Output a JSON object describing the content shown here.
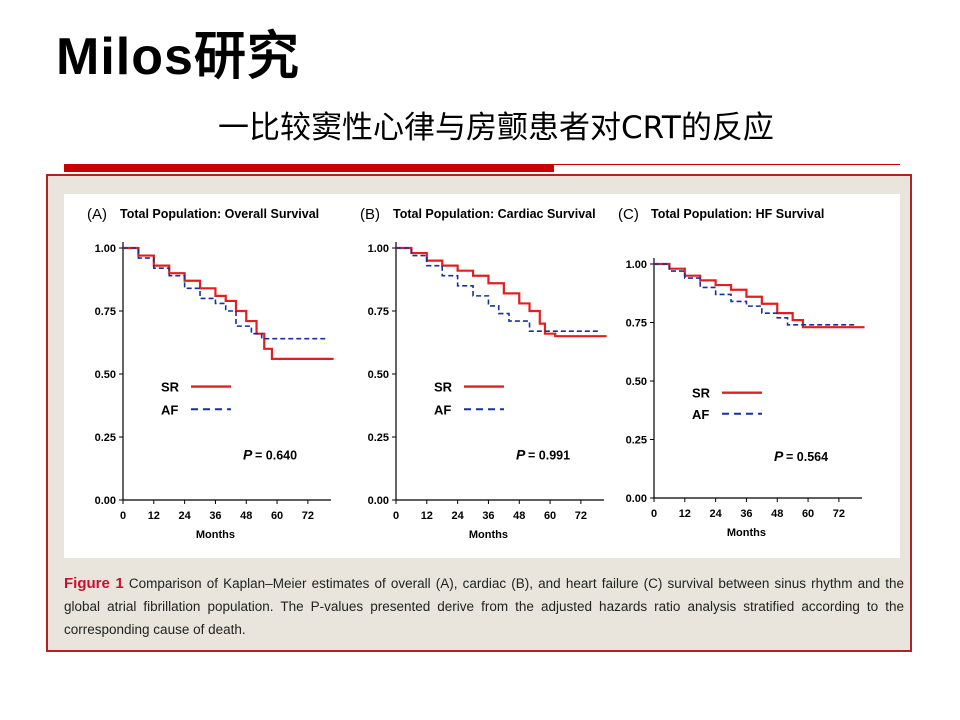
{
  "slide": {
    "title": "Milos研究",
    "subtitle": "一比较窦性心律与房颤患者对CRT的反应"
  },
  "caption": {
    "figure_label": "Figure 1",
    "text": " Comparison of Kaplan–Meier estimates of overall (A), cardiac (B), and heart failure (C) survival between sinus rhythm and the global atrial fibrillation population. The P-values presented derive from the adjusted hazards ratio analysis stratified according to the corresponding cause of death."
  },
  "colors": {
    "SR": "#e02020",
    "AF": "#1a2f9c"
  },
  "chart_data": [
    {
      "type": "line",
      "panel_label": "(A)",
      "title": "Total Population: Overall Survival",
      "xlabel": "Months",
      "ylabel": "",
      "xlim": [
        0,
        81
      ],
      "ylim": [
        0,
        1
      ],
      "x_ticks": [
        "0",
        "12",
        "24",
        "36",
        "48",
        "60",
        "72"
      ],
      "y_ticks": [
        "0.00",
        "0.25",
        "0.50",
        "0.75",
        "1.00"
      ],
      "legend": [
        {
          "name": "SR",
          "style": "solid"
        },
        {
          "name": "AF",
          "style": "dashed"
        }
      ],
      "p_label": "P",
      "p_value": "= 0.640",
      "series": [
        {
          "name": "SR",
          "points": [
            [
              0,
              1.0
            ],
            [
              6,
              0.97
            ],
            [
              12,
              0.93
            ],
            [
              18,
              0.9
            ],
            [
              24,
              0.87
            ],
            [
              30,
              0.84
            ],
            [
              36,
              0.81
            ],
            [
              40,
              0.79
            ],
            [
              44,
              0.75
            ],
            [
              48,
              0.71
            ],
            [
              52,
              0.66
            ],
            [
              55,
              0.6
            ],
            [
              58,
              0.56
            ],
            [
              68,
              0.56
            ],
            [
              82,
              0.56
            ]
          ]
        },
        {
          "name": "AF",
          "points": [
            [
              0,
              1.0
            ],
            [
              6,
              0.96
            ],
            [
              12,
              0.92
            ],
            [
              18,
              0.89
            ],
            [
              24,
              0.84
            ],
            [
              30,
              0.8
            ],
            [
              36,
              0.78
            ],
            [
              40,
              0.75
            ],
            [
              44,
              0.69
            ],
            [
              50,
              0.66
            ],
            [
              54,
              0.64
            ],
            [
              60,
              0.64
            ],
            [
              79,
              0.64
            ]
          ]
        }
      ]
    },
    {
      "type": "line",
      "panel_label": "(B)",
      "title": "Total Population: Cardiac Survival",
      "xlabel": "Months",
      "ylabel": "",
      "xlim": [
        0,
        81
      ],
      "ylim": [
        0,
        1
      ],
      "x_ticks": [
        "0",
        "12",
        "24",
        "36",
        "48",
        "60",
        "72"
      ],
      "y_ticks": [
        "0.00",
        "0.25",
        "0.50",
        "0.75",
        "1.00"
      ],
      "legend": [
        {
          "name": "SR",
          "style": "solid"
        },
        {
          "name": "AF",
          "style": "dashed"
        }
      ],
      "p_label": "P",
      "p_value": "= 0.991",
      "series": [
        {
          "name": "SR",
          "points": [
            [
              0,
              1.0
            ],
            [
              6,
              0.98
            ],
            [
              12,
              0.95
            ],
            [
              18,
              0.93
            ],
            [
              24,
              0.91
            ],
            [
              30,
              0.89
            ],
            [
              36,
              0.86
            ],
            [
              42,
              0.82
            ],
            [
              48,
              0.78
            ],
            [
              52,
              0.75
            ],
            [
              56,
              0.7
            ],
            [
              58,
              0.66
            ],
            [
              62,
              0.65
            ],
            [
              82,
              0.65
            ]
          ]
        },
        {
          "name": "AF",
          "points": [
            [
              0,
              1.0
            ],
            [
              6,
              0.97
            ],
            [
              12,
              0.93
            ],
            [
              18,
              0.89
            ],
            [
              24,
              0.85
            ],
            [
              30,
              0.81
            ],
            [
              36,
              0.77
            ],
            [
              40,
              0.74
            ],
            [
              44,
              0.71
            ],
            [
              50,
              0.71
            ],
            [
              52,
              0.67
            ],
            [
              60,
              0.67
            ],
            [
              79,
              0.67
            ]
          ]
        }
      ]
    },
    {
      "type": "line",
      "panel_label": "(C)",
      "title": "Total Population: HF Survival",
      "xlabel": "Months",
      "ylabel": "",
      "xlim": [
        0,
        81
      ],
      "ylim": [
        0,
        1
      ],
      "x_ticks": [
        "0",
        "12",
        "24",
        "36",
        "48",
        "60",
        "72"
      ],
      "y_ticks": [
        "0.00",
        "0.25",
        "0.50",
        "0.75",
        "1.00"
      ],
      "legend": [
        {
          "name": "SR",
          "style": "solid"
        },
        {
          "name": "AF",
          "style": "dashed"
        }
      ],
      "p_label": "P",
      "p_value": "= 0.564",
      "series": [
        {
          "name": "SR",
          "points": [
            [
              0,
              1.0
            ],
            [
              6,
              0.98
            ],
            [
              12,
              0.95
            ],
            [
              18,
              0.93
            ],
            [
              24,
              0.91
            ],
            [
              30,
              0.89
            ],
            [
              36,
              0.86
            ],
            [
              42,
              0.83
            ],
            [
              48,
              0.79
            ],
            [
              54,
              0.76
            ],
            [
              58,
              0.73
            ],
            [
              70,
              0.73
            ],
            [
              82,
              0.73
            ]
          ]
        },
        {
          "name": "AF",
          "points": [
            [
              0,
              1.0
            ],
            [
              6,
              0.97
            ],
            [
              12,
              0.94
            ],
            [
              18,
              0.9
            ],
            [
              24,
              0.87
            ],
            [
              30,
              0.84
            ],
            [
              36,
              0.82
            ],
            [
              42,
              0.79
            ],
            [
              48,
              0.77
            ],
            [
              52,
              0.74
            ],
            [
              60,
              0.74
            ],
            [
              79,
              0.74
            ]
          ]
        }
      ]
    }
  ]
}
